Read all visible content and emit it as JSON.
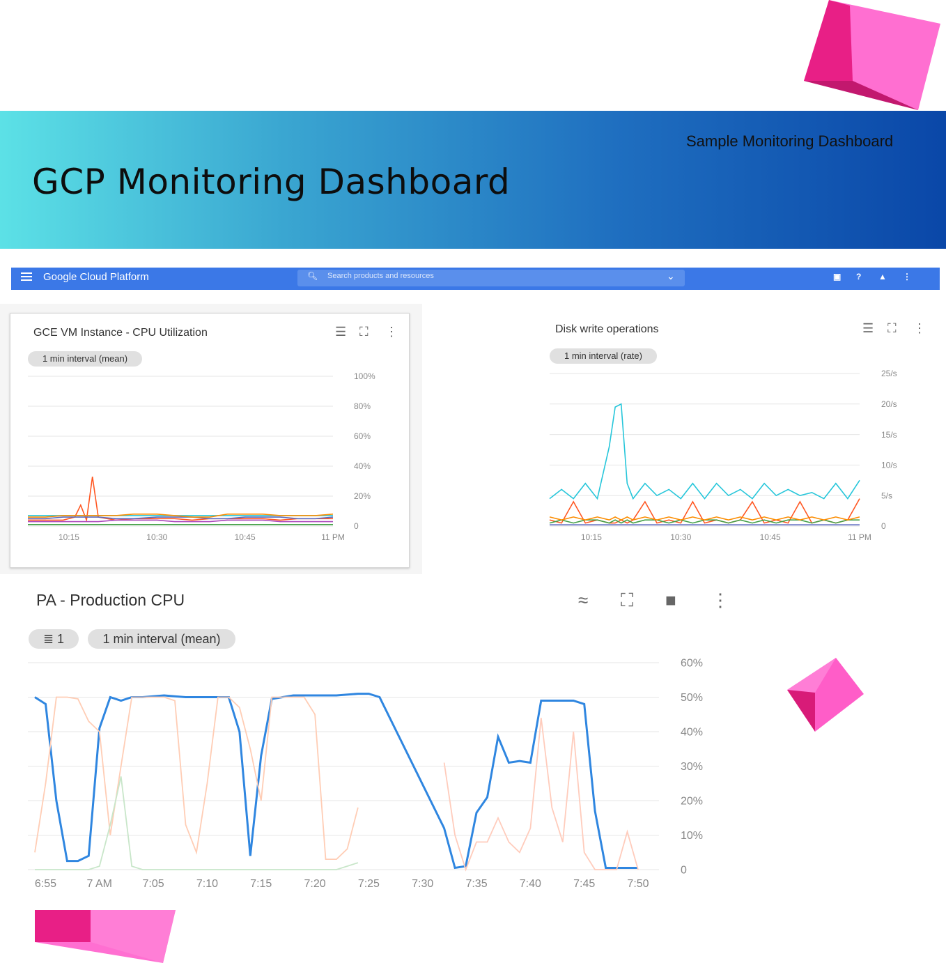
{
  "banner": {
    "title": "GCP Monitoring Dashboard",
    "subtitle": "Sample Monitoring Dashboard",
    "colors": {
      "gradient_start": "#5ce1e6",
      "gradient_end": "#0a47a8",
      "cube": "#ff3fb4"
    }
  },
  "gcp_header": {
    "app_name": "Google Cloud Platform",
    "search_placeholder": "Search products and resources",
    "icons": [
      "menu-icon",
      "search-icon",
      "chevron-down-icon",
      "cloud-shell-icon",
      "help-icon",
      "bell-icon",
      "more-vert-icon"
    ],
    "color": "#3b78e7"
  },
  "cpu_chart": {
    "title": "GCE VM Instance - CPU Utilization",
    "interval_chip": "1 min interval (mean)",
    "icons": [
      "legend-list-icon",
      "fullscreen-icon",
      "more-vert-icon"
    ]
  },
  "disk_chart": {
    "title": "Disk write operations",
    "interval_chip": "1 min interval (rate)",
    "icons": [
      "legend-list-icon",
      "fullscreen-icon",
      "more-vert-icon"
    ]
  },
  "prod_chart": {
    "title": "PA - Production CPU",
    "filter_chip": "1",
    "interval_chip": "1 min interval (mean)",
    "icons": [
      "legend-toggle-icon",
      "fullscreen-icon",
      "delete-icon",
      "more-vert-icon"
    ]
  },
  "chart_data": [
    {
      "type": "line",
      "title": "GCE VM Instance - CPU Utilization",
      "x": [
        "10:08",
        "10:11",
        "10:14",
        "10:16",
        "10:17",
        "10:18",
        "10:19",
        "10:20",
        "10:23",
        "10:26",
        "10:30",
        "10:33",
        "10:36",
        "10:39",
        "10:42",
        "10:45",
        "10:48",
        "10:51",
        "10:54",
        "10:57",
        "11:00"
      ],
      "x_ticks": [
        "10:15",
        "10:30",
        "10:45",
        "11 PM"
      ],
      "y_ticks": [
        "0",
        "20%",
        "40%",
        "60%",
        "80%",
        "100%"
      ],
      "ylim": [
        0,
        100
      ],
      "grid": true,
      "series": [
        {
          "color": "#ff5722",
          "values": [
            4,
            4,
            4,
            6,
            14,
            4,
            33,
            6,
            4,
            5,
            5,
            5,
            4,
            5,
            5,
            5,
            5,
            4,
            5,
            5,
            5
          ]
        },
        {
          "color": "#26c6da",
          "values": [
            7,
            7,
            7,
            7,
            7,
            7,
            7,
            7,
            7,
            7,
            7,
            7,
            7,
            7,
            7,
            7,
            7,
            7,
            7,
            7,
            7
          ]
        },
        {
          "color": "#ab47bc",
          "values": [
            3,
            3,
            3,
            3,
            3,
            3,
            3,
            3,
            4,
            4,
            4,
            3,
            3,
            3,
            4,
            4,
            4,
            3,
            3,
            3,
            3
          ]
        },
        {
          "color": "#43a047",
          "values": [
            1,
            1,
            1,
            1,
            1,
            1,
            1,
            1,
            1,
            1,
            1,
            1,
            1,
            1,
            1,
            1,
            1,
            1,
            1,
            1,
            1
          ]
        },
        {
          "color": "#5c6bc0",
          "values": [
            5,
            5,
            6,
            6,
            6,
            6,
            6,
            6,
            5,
            5,
            6,
            6,
            6,
            5,
            5,
            6,
            6,
            6,
            5,
            5,
            6
          ]
        },
        {
          "color": "#fb8c00",
          "values": [
            6,
            6,
            7,
            7,
            7,
            7,
            7,
            7,
            7,
            8,
            8,
            7,
            6,
            6,
            8,
            8,
            8,
            7,
            7,
            7,
            8
          ]
        }
      ]
    },
    {
      "type": "line",
      "title": "Disk write operations",
      "x": [
        "10:08",
        "10:10",
        "10:12",
        "10:14",
        "10:16",
        "10:18",
        "10:19",
        "10:20",
        "10:21",
        "10:22",
        "10:24",
        "10:26",
        "10:28",
        "10:30",
        "10:32",
        "10:34",
        "10:36",
        "10:38",
        "10:40",
        "10:42",
        "10:44",
        "10:46",
        "10:48",
        "10:50",
        "10:52",
        "10:54",
        "10:56",
        "10:58",
        "11:00"
      ],
      "x_ticks": [
        "10:15",
        "10:30",
        "10:45",
        "11 PM"
      ],
      "y_ticks": [
        "0",
        "5/s",
        "10/s",
        "15/s",
        "20/s",
        "25/s"
      ],
      "ylim": [
        0,
        25
      ],
      "grid": true,
      "series": [
        {
          "color": "#26c6da",
          "values": [
            4.5,
            6,
            4.5,
            7,
            4.5,
            13,
            19.5,
            20,
            7,
            4.5,
            7,
            5,
            6,
            4.5,
            7,
            4.5,
            7,
            5,
            6,
            4.5,
            7,
            5,
            6,
            5,
            5.5,
            4.5,
            7,
            4.5,
            7.5
          ]
        },
        {
          "color": "#ff5722",
          "values": [
            1,
            0.5,
            4,
            0.5,
            1,
            0.5,
            0.5,
            1,
            0.5,
            1,
            4,
            0.5,
            1,
            0.5,
            4,
            0.5,
            1,
            0.5,
            1,
            4,
            0.5,
            1,
            0.5,
            4,
            0.5,
            1,
            0.5,
            1,
            4.5
          ]
        },
        {
          "color": "#43a047",
          "values": [
            0.5,
            1,
            0.5,
            1,
            1,
            0.5,
            1,
            0.5,
            1,
            0.5,
            1,
            1,
            0.5,
            1,
            0.5,
            1,
            1,
            0.5,
            1,
            0.5,
            1,
            0.5,
            1,
            1,
            0.5,
            1,
            0.5,
            1,
            1
          ]
        },
        {
          "color": "#fb8c00",
          "values": [
            1.5,
            1,
            1.5,
            1,
            1.5,
            1,
            1.5,
            1,
            1.5,
            1,
            1.5,
            1,
            1.5,
            1,
            1.5,
            1,
            1.5,
            1,
            1.5,
            1,
            1.5,
            1,
            1.5,
            1,
            1.5,
            1,
            1.5,
            1,
            1.5
          ]
        },
        {
          "color": "#5c6bc0",
          "values": [
            0.2,
            0.2,
            0.2,
            0.2,
            0.2,
            0.2,
            0.2,
            0.2,
            0.2,
            0.2,
            0.2,
            0.2,
            0.2,
            0.2,
            0.2,
            0.2,
            0.2,
            0.2,
            0.2,
            0.2,
            0.2,
            0.2,
            0.2,
            0.2,
            0.2,
            0.2,
            0.2,
            0.2,
            0.2
          ]
        }
      ]
    },
    {
      "type": "line",
      "title": "PA - Production CPU",
      "x_ticks": [
        "6:55",
        "7 AM",
        "7:05",
        "7:10",
        "7:15",
        "7:20",
        "7:25",
        "7:30",
        "7:35",
        "7:40",
        "7:45",
        "7:50"
      ],
      "y_ticks": [
        "0",
        "10%",
        "20%",
        "30%",
        "40%",
        "50%",
        "60%"
      ],
      "ylim": [
        0,
        60
      ],
      "xlim_minutes": [
        0,
        56
      ],
      "grid": true,
      "series": [
        {
          "color": "#2f86e0",
          "x_minutes": [
            0,
            1,
            2,
            3,
            4,
            5,
            6,
            7,
            8,
            9,
            10,
            12,
            14,
            16,
            17,
            18,
            19,
            20,
            21,
            22,
            24,
            26,
            28,
            30,
            31,
            32,
            38,
            39,
            40,
            41,
            42,
            43,
            44,
            45,
            46,
            47,
            48,
            49,
            50,
            51,
            52,
            53,
            54,
            56
          ],
          "values": [
            50,
            48,
            20,
            2.5,
            2.5,
            4,
            41,
            50,
            49,
            50,
            50,
            50.5,
            50,
            50,
            50,
            50,
            40,
            4,
            33,
            49.5,
            50.5,
            50.5,
            50.5,
            51,
            51,
            50,
            12,
            0.5,
            1,
            16.5,
            21,
            38.5,
            31,
            31.5,
            31,
            49,
            49,
            49,
            49,
            48,
            17,
            0.5,
            0.5,
            0.5
          ]
        },
        {
          "color": "#ffcdb5",
          "x_minutes": [
            0,
            1,
            2,
            3,
            4,
            5,
            6,
            7,
            8,
            9,
            10,
            12,
            13,
            14,
            15,
            16,
            17,
            18,
            19,
            20,
            21,
            22,
            23,
            24,
            25,
            26,
            27,
            28,
            29,
            30
          ],
          "values": [
            5,
            25,
            50,
            50,
            49.5,
            43,
            40,
            10,
            30,
            50,
            50,
            50,
            49,
            13,
            5,
            25,
            50,
            50,
            47,
            35,
            20,
            50,
            50,
            50,
            50,
            45,
            3,
            3,
            6,
            18
          ]
        },
        {
          "color": "#ffccbc",
          "x_minutes": [
            38,
            39,
            40,
            41,
            42,
            43,
            44,
            45,
            46,
            47,
            48,
            49,
            50,
            51,
            52,
            53,
            54,
            55,
            56
          ],
          "values": [
            31,
            10,
            0,
            8,
            8,
            15,
            8,
            5,
            12,
            44,
            18,
            8,
            40,
            5,
            0,
            0,
            0,
            11,
            0
          ]
        },
        {
          "color": "#c8e6c9",
          "x_minutes": [
            0,
            2,
            4,
            5,
            6,
            7,
            8,
            9,
            10,
            12,
            14,
            16,
            18,
            20,
            22,
            24,
            26,
            28,
            30
          ],
          "values": [
            0,
            0,
            0,
            0,
            1,
            13,
            27,
            1,
            0,
            0,
            0,
            0,
            0,
            0,
            0,
            0,
            0,
            0,
            2
          ]
        }
      ]
    }
  ]
}
